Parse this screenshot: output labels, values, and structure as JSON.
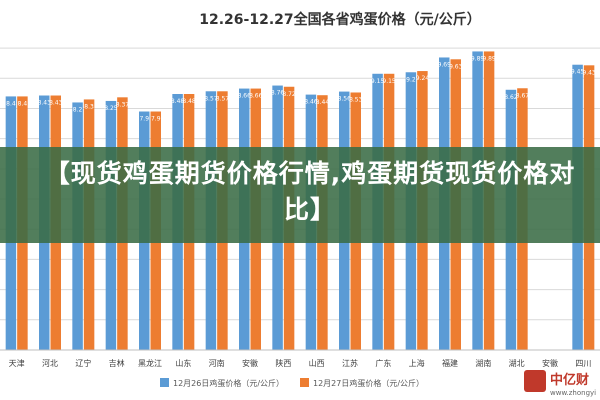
{
  "banner": {
    "headline": "【现货鸡蛋期货价格行情,鸡蛋期货现货价格对比】"
  },
  "watermark": {
    "brand": "中亿财",
    "url": "www.zhongyi9"
  },
  "colors": {
    "series1": "#5b9bd5",
    "series2": "#ed7d31",
    "grid": "#d9d9d9",
    "title": "#333333"
  },
  "chart_data": {
    "type": "bar",
    "title": "12.26-12.27全国各省鸡蛋价格（元/公斤）",
    "categories": [
      "天津",
      "河北",
      "辽宁",
      "吉林",
      "黑龙江",
      "山东",
      "河南",
      "安徽",
      "陕西",
      "山西",
      "江苏",
      "广东",
      "上海",
      "福建",
      "湖南",
      "湖北",
      "安徽",
      "四川"
    ],
    "series": [
      {
        "name": "12月26日鸡蛋价格（元/公斤）",
        "values": [
          8.4,
          8.43,
          8.2,
          8.25,
          7.9,
          8.48,
          8.57,
          8.66,
          8.76,
          8.46,
          8.56,
          9.15,
          9.2,
          9.69,
          9.89,
          8.62,
          null,
          9.45
        ]
      },
      {
        "name": "12月27日鸡蛋价格（元/公斤）",
        "values": [
          8.4,
          8.43,
          8.3,
          8.37,
          7.9,
          8.48,
          8.57,
          8.66,
          8.72,
          8.44,
          8.53,
          9.15,
          9.24,
          9.63,
          9.89,
          8.67,
          null,
          9.43
        ]
      }
    ],
    "ylim": [
      0,
      10.6
    ],
    "grid": true,
    "legend": "bottom"
  }
}
